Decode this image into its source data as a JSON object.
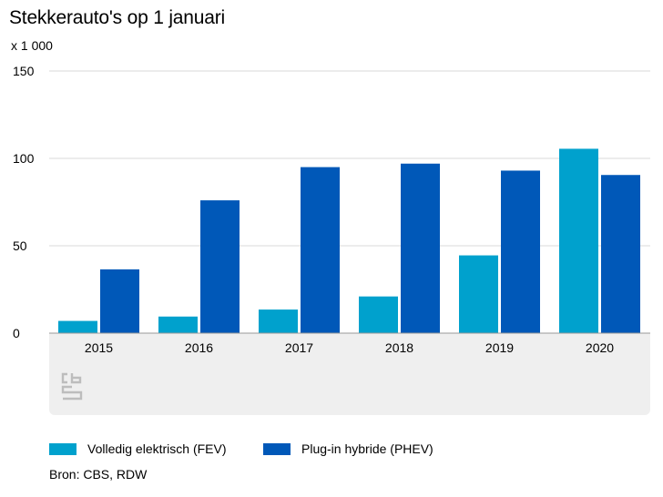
{
  "chart_data": {
    "type": "bar",
    "title": "Stekkerauto's op 1 januari",
    "unit_label": "x 1 000",
    "categories": [
      "2015",
      "2016",
      "2017",
      "2018",
      "2019",
      "2020"
    ],
    "series": [
      {
        "name": "Volledig elektrisch (FEV)",
        "color": "#00a1cd",
        "values": [
          7,
          9.5,
          13.5,
          21,
          44.5,
          105.5
        ]
      },
      {
        "name": "Plug-in hybride (PHEV)",
        "color": "#0058b8",
        "values": [
          36.5,
          76,
          95,
          97,
          93,
          90.5
        ]
      }
    ],
    "ylim": [
      0,
      150
    ],
    "yticks": [
      0,
      50,
      100,
      150
    ],
    "grid": true,
    "legend_position": "bottom",
    "source": "Bron: CBS, RDW"
  },
  "logo": {
    "icon": "cbs-logo-icon",
    "color": "#bdbdbd"
  }
}
